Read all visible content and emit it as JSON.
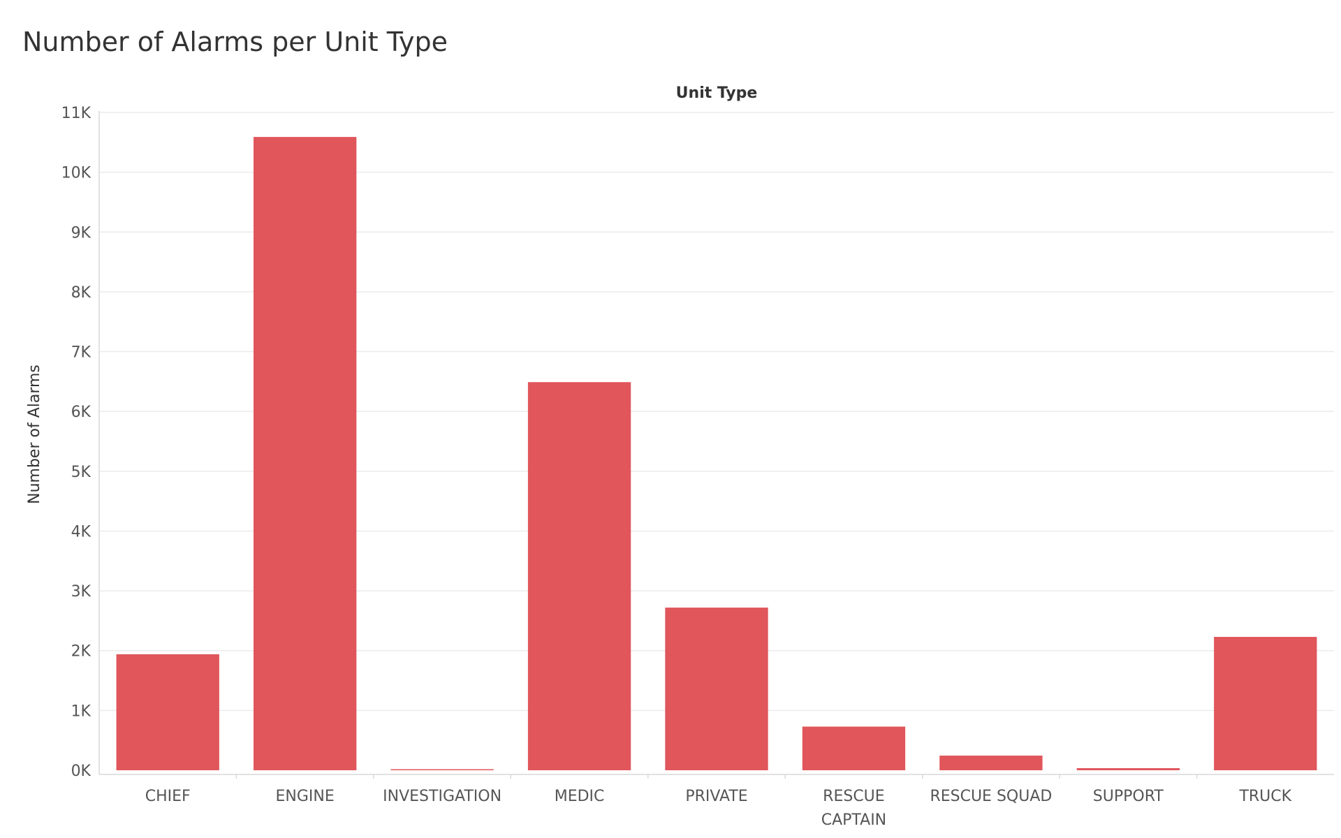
{
  "title": "Number of Alarms per Unit Type",
  "colors": {
    "bar": "#e0565b",
    "grid": "#ebebeb",
    "axis": "#d9d9d9"
  },
  "chart_data": {
    "type": "bar",
    "title": "Number of Alarms per Unit Type",
    "xlabel": "Unit Type",
    "ylabel": "Number of Alarms",
    "categories": [
      [
        "CHIEF"
      ],
      [
        "ENGINE"
      ],
      [
        "INVESTIGATION"
      ],
      [
        "MEDIC"
      ],
      [
        "PRIVATE"
      ],
      [
        "RESCUE",
        "CAPTAIN"
      ],
      [
        "RESCUE SQUAD"
      ],
      [
        "SUPPORT"
      ],
      [
        "TRUCK"
      ]
    ],
    "values": [
      1940,
      10590,
      15,
      6490,
      2720,
      730,
      245,
      35,
      2230
    ],
    "ylim": [
      0,
      11000
    ],
    "yticks": [
      {
        "value": 0,
        "label": "0K"
      },
      {
        "value": 1000,
        "label": "1K"
      },
      {
        "value": 2000,
        "label": "2K"
      },
      {
        "value": 3000,
        "label": "3K"
      },
      {
        "value": 4000,
        "label": "4K"
      },
      {
        "value": 5000,
        "label": "5K"
      },
      {
        "value": 6000,
        "label": "6K"
      },
      {
        "value": 7000,
        "label": "7K"
      },
      {
        "value": 8000,
        "label": "8K"
      },
      {
        "value": 9000,
        "label": "9K"
      },
      {
        "value": 10000,
        "label": "10K"
      },
      {
        "value": 11000,
        "label": "11K"
      }
    ],
    "grid": true,
    "legend": "none"
  }
}
